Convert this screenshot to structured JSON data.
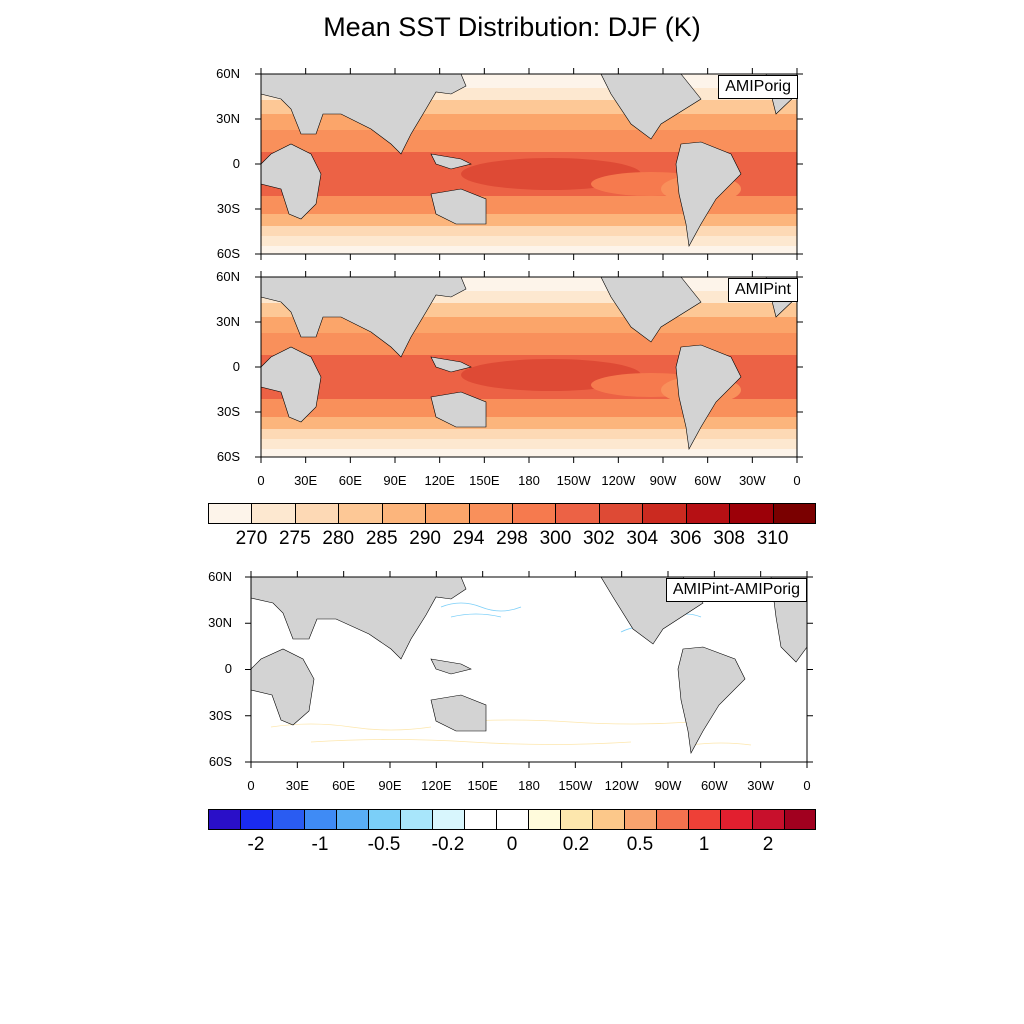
{
  "title": "Mean SST Distribution: DJF (K)",
  "panels": [
    {
      "label": "AMIPorig"
    },
    {
      "label": "AMIPint"
    },
    {
      "label": "AMIPint-AMIPorig"
    }
  ],
  "lat_ticks": [
    "60N",
    "30N",
    "0",
    "30S",
    "60S"
  ],
  "lon_ticks": [
    "0",
    "30E",
    "60E",
    "90E",
    "120E",
    "150E",
    "180",
    "150W",
    "120W",
    "90W",
    "60W",
    "30W",
    "0"
  ],
  "colorbar_sst": {
    "labels": [
      "270",
      "275",
      "280",
      "285",
      "290",
      "294",
      "298",
      "300",
      "302",
      "304",
      "306",
      "308",
      "310"
    ],
    "colors": [
      "#fdf4ea",
      "#fde8d0",
      "#fdd9b5",
      "#fdc896",
      "#fcb57c",
      "#fba56a",
      "#f9905b",
      "#f67a4e",
      "#ec6245",
      "#de4a35",
      "#cb2a20",
      "#b61014",
      "#9c0008",
      "#7a0000"
    ]
  },
  "colorbar_diff": {
    "labels": [
      "-2",
      "-1",
      "-0.5",
      "-0.2",
      "0",
      "0.2",
      "0.5",
      "1",
      "2"
    ],
    "colors": [
      "#2a0fc8",
      "#1a2bf0",
      "#2a5cf2",
      "#3f8bf5",
      "#59aef5",
      "#7bcff8",
      "#a8e6fb",
      "#d8f6fd",
      "#ffffff",
      "#ffffff",
      "#fffbdc",
      "#fde7ad",
      "#fcc88a",
      "#f9a36e",
      "#f4724f",
      "#ee4037",
      "#e21f2f",
      "#c8102c",
      "#a1001f"
    ]
  },
  "colors": {
    "land": "#d3d3d3",
    "coast": "#000000"
  }
}
